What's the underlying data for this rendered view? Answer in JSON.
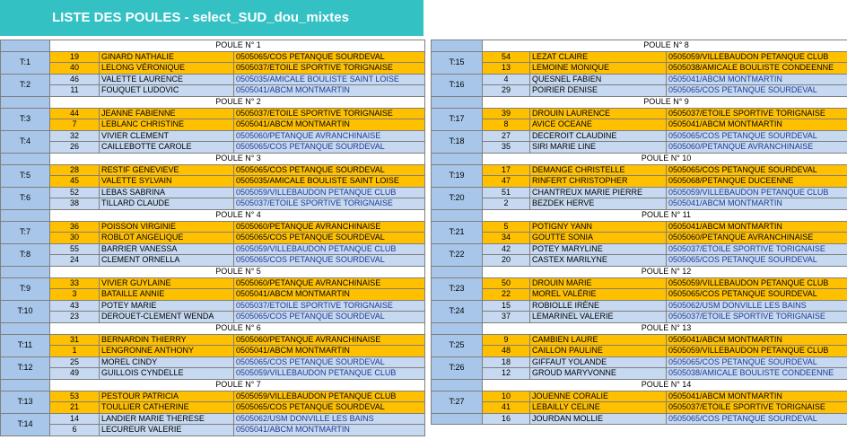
{
  "title": "LISTE DES POULES - select_SUD_dou_mixtes",
  "tables": [
    {
      "poules": [
        {
          "header": "POULE N° 1",
          "teams": [
            {
              "label": "T:1",
              "players": [
                {
                  "num": "19",
                  "name": "GINARD NATHALIE",
                  "club": "0505065/COS PETANQUE SOURDEVAL"
                },
                {
                  "num": "40",
                  "name": "LELONG VÉRONIQUE",
                  "club": "0505037/ETOILE SPORTIVE TORIGNAISE"
                }
              ]
            },
            {
              "label": "T:2",
              "players": [
                {
                  "num": "46",
                  "name": "VALETTE LAURENCE",
                  "club": "0505035/AMICALE BOULISTE SAINT LOISE"
                },
                {
                  "num": "11",
                  "name": "FOUQUET LUDOVIC",
                  "club": "0505041/ABCM MONTMARTIN"
                }
              ]
            }
          ]
        },
        {
          "header": "POULE N° 2",
          "teams": [
            {
              "label": "T:3",
              "players": [
                {
                  "num": "44",
                  "name": "JEANNE FABIENNE",
                  "club": "0505037/ETOILE SPORTIVE TORIGNAISE"
                },
                {
                  "num": "7",
                  "name": "LEBLANC CHRISTINE",
                  "club": "0505041/ABCM MONTMARTIN"
                }
              ]
            },
            {
              "label": "T:4",
              "players": [
                {
                  "num": "32",
                  "name": "VIVIER CLEMENT",
                  "club": "0505060/PETANQUE AVRANCHINAISE"
                },
                {
                  "num": "26",
                  "name": "CAILLEBOTTE CAROLE",
                  "club": "0505065/COS PETANQUE SOURDEVAL"
                }
              ]
            }
          ]
        },
        {
          "header": "POULE N° 3",
          "teams": [
            {
              "label": "T:5",
              "players": [
                {
                  "num": "28",
                  "name": "RESTIF GENEVIEVE",
                  "club": "0505065/COS PETANQUE SOURDEVAL"
                },
                {
                  "num": "45",
                  "name": "VALETTE SYLVAIN",
                  "club": "0505035/AMICALE BOULISTE SAINT LOISE"
                }
              ]
            },
            {
              "label": "T:6",
              "players": [
                {
                  "num": "52",
                  "name": "LEBAS SABRINA",
                  "club": "0505059/VILLEBAUDON PETANQUE CLUB"
                },
                {
                  "num": "38",
                  "name": "TILLARD CLAUDE",
                  "club": "0505037/ETOILE SPORTIVE TORIGNAISE"
                }
              ]
            }
          ]
        },
        {
          "header": "POULE N° 4",
          "teams": [
            {
              "label": "T:7",
              "players": [
                {
                  "num": "36",
                  "name": "POISSON VIRGINIE",
                  "club": "0505060/PETANQUE AVRANCHINAISE"
                },
                {
                  "num": "30",
                  "name": "ROBLOT ANGELIQUE",
                  "club": "0505065/COS PETANQUE SOURDEVAL"
                }
              ]
            },
            {
              "label": "T:8",
              "players": [
                {
                  "num": "55",
                  "name": "BARRIER VANESSA",
                  "club": "0505059/VILLEBAUDON PETANQUE CLUB"
                },
                {
                  "num": "24",
                  "name": "CLEMENT ORNELLA",
                  "club": "0505065/COS PETANQUE SOURDEVAL"
                }
              ]
            }
          ]
        },
        {
          "header": "POULE N° 5",
          "teams": [
            {
              "label": "T:9",
              "players": [
                {
                  "num": "33",
                  "name": "VIVIER GUYLAINE",
                  "club": "0505060/PETANQUE AVRANCHINAISE"
                },
                {
                  "num": "3",
                  "name": "BATAILLE ANNIE",
                  "club": "0505041/ABCM MONTMARTIN"
                }
              ]
            },
            {
              "label": "T:10",
              "players": [
                {
                  "num": "43",
                  "name": "POTEY MARIE",
                  "club": "0505037/ETOILE SPORTIVE TORIGNAISE"
                },
                {
                  "num": "23",
                  "name": "DEROUET-CLEMENT WENDA",
                  "club": "0505065/COS PETANQUE SOURDEVAL"
                }
              ]
            }
          ]
        },
        {
          "header": "POULE N° 6",
          "teams": [
            {
              "label": "T:11",
              "players": [
                {
                  "num": "31",
                  "name": "BERNARDIN THIERRY",
                  "club": "0505060/PETANQUE AVRANCHINAISE"
                },
                {
                  "num": "1",
                  "name": "LENGRONNE ANTHONY",
                  "club": "0505041/ABCM MONTMARTIN"
                }
              ]
            },
            {
              "label": "T:12",
              "players": [
                {
                  "num": "25",
                  "name": "MOREL CINDY",
                  "club": "0505065/COS PETANQUE SOURDEVAL"
                },
                {
                  "num": "49",
                  "name": "GUILLOIS CYNDELLE",
                  "club": "0505059/VILLEBAUDON PETANQUE CLUB"
                }
              ]
            }
          ]
        },
        {
          "header": "POULE N° 7",
          "teams": [
            {
              "label": "T:13",
              "players": [
                {
                  "num": "53",
                  "name": "PESTOUR PATRICIA",
                  "club": "0505059/VILLEBAUDON PETANQUE CLUB"
                },
                {
                  "num": "21",
                  "name": "TOULLIER CATHERINE",
                  "club": "0505065/COS PETANQUE SOURDEVAL"
                }
              ]
            },
            {
              "label": "T:14",
              "players": [
                {
                  "num": "14",
                  "name": "LANDIER MARIE THERESE",
                  "club": "0505062/USM DONVILLE LES BAINS"
                },
                {
                  "num": "6",
                  "name": "LECUREUR VALERIE",
                  "club": "0505041/ABCM MONTMARTIN"
                }
              ]
            }
          ]
        }
      ]
    },
    {
      "poules": [
        {
          "header": "POULE N° 8",
          "teams": [
            {
              "label": "T:15",
              "players": [
                {
                  "num": "54",
                  "name": "LEZAT CLAIRE",
                  "club": "0505059/VILLEBAUDON PETANQUE CLUB"
                },
                {
                  "num": "13",
                  "name": "LEMOINE MONIQUE",
                  "club": "0505038/AMICALE BOULISTE CONDEENNE"
                }
              ]
            },
            {
              "label": "T:16",
              "players": [
                {
                  "num": "4",
                  "name": "QUESNEL FABIEN",
                  "club": "0505041/ABCM MONTMARTIN"
                },
                {
                  "num": "29",
                  "name": "POIRIER DENISE",
                  "club": "0505065/COS PETANQUE SOURDEVAL"
                }
              ]
            }
          ]
        },
        {
          "header": "POULE N° 9",
          "teams": [
            {
              "label": "T:17",
              "players": [
                {
                  "num": "39",
                  "name": "DROUIN LAURENCE",
                  "club": "0505037/ETOILE SPORTIVE TORIGNAISE"
                },
                {
                  "num": "8",
                  "name": "AVICE OCEANE",
                  "club": "0505041/ABCM MONTMARTIN"
                }
              ]
            },
            {
              "label": "T:18",
              "players": [
                {
                  "num": "27",
                  "name": "DECEROIT CLAUDINE",
                  "club": "0505065/COS PETANQUE SOURDEVAL"
                },
                {
                  "num": "35",
                  "name": "SIRI MARIE LINE",
                  "club": "0505060/PETANQUE AVRANCHINAISE"
                }
              ]
            }
          ]
        },
        {
          "header": "POULE N° 10",
          "teams": [
            {
              "label": "T:19",
              "players": [
                {
                  "num": "17",
                  "name": "DEMANGE CHRISTELLE",
                  "club": "0505065/COS PETANQUE SOURDEVAL"
                },
                {
                  "num": "47",
                  "name": "RINFERT CHRISTOPHER",
                  "club": "0505068/PETANQUE DUCEENNE"
                }
              ]
            },
            {
              "label": "T:20",
              "players": [
                {
                  "num": "51",
                  "name": "CHANTREUX MARIE PIERRE",
                  "club": "0505059/VILLEBAUDON PETANQUE CLUB"
                },
                {
                  "num": "2",
                  "name": "BEZDEK HERVE",
                  "club": "0505041/ABCM MONTMARTIN"
                }
              ]
            }
          ]
        },
        {
          "header": "POULE N° 11",
          "teams": [
            {
              "label": "T:21",
              "players": [
                {
                  "num": "5",
                  "name": "POTIGNY YANN",
                  "club": "0505041/ABCM MONTMARTIN"
                },
                {
                  "num": "34",
                  "name": "GOUTTE SONIA",
                  "club": "0505060/PETANQUE AVRANCHINAISE"
                }
              ]
            },
            {
              "label": "T:22",
              "players": [
                {
                  "num": "42",
                  "name": "POTEY MARYLINE",
                  "club": "0505037/ETOILE SPORTIVE TORIGNAISE"
                },
                {
                  "num": "20",
                  "name": "CASTEX MARILYNE",
                  "club": "0505065/COS PETANQUE SOURDEVAL"
                }
              ]
            }
          ]
        },
        {
          "header": "POULE N° 12",
          "teams": [
            {
              "label": "T:23",
              "players": [
                {
                  "num": "50",
                  "name": "DROUIN MARIE",
                  "club": "0505059/VILLEBAUDON PETANQUE CLUB"
                },
                {
                  "num": "22",
                  "name": "MOREL VALÉRIE",
                  "club": "0505065/COS PETANQUE SOURDEVAL"
                }
              ]
            },
            {
              "label": "T:24",
              "players": [
                {
                  "num": "15",
                  "name": "ROBIOLLE IRÈNE",
                  "club": "0505062/USM DONVILLE LES BAINS"
                },
                {
                  "num": "37",
                  "name": "LEMARINEL VALERIE",
                  "club": "0505037/ETOILE SPORTIVE TORIGNAISE"
                }
              ]
            }
          ]
        },
        {
          "header": "POULE N° 13",
          "teams": [
            {
              "label": "T:25",
              "players": [
                {
                  "num": "9",
                  "name": "CAMBIEN LAURE",
                  "club": "0505041/ABCM MONTMARTIN"
                },
                {
                  "num": "48",
                  "name": "CAILLON PAULINE",
                  "club": "0505059/VILLEBAUDON PETANQUE CLUB"
                }
              ]
            },
            {
              "label": "T:26",
              "players": [
                {
                  "num": "18",
                  "name": "GIFFAUT YOLANDE",
                  "club": "0505065/COS PETANQUE SOURDEVAL"
                },
                {
                  "num": "12",
                  "name": "GROUD MARYVONNE",
                  "club": "0505038/AMICALE BOULISTE CONDEENNE"
                }
              ]
            }
          ]
        },
        {
          "header": "POULE N° 14",
          "teams": [
            {
              "label": "T:27",
              "players": [
                {
                  "num": "10",
                  "name": "JOUENNE CORALIE",
                  "club": "0505041/ABCM MONTMARTIN"
                },
                {
                  "num": "41",
                  "name": "LEBAILLY CELINE",
                  "club": "0505037/ETOILE SPORTIVE TORIGNAISE"
                }
              ]
            },
            {
              "players": [
                {
                  "num": "16",
                  "name": "JOURDAN MOLLIE",
                  "club": "0505065/COS PETANQUE SOURDEVAL"
                }
              ]
            }
          ]
        }
      ]
    }
  ]
}
